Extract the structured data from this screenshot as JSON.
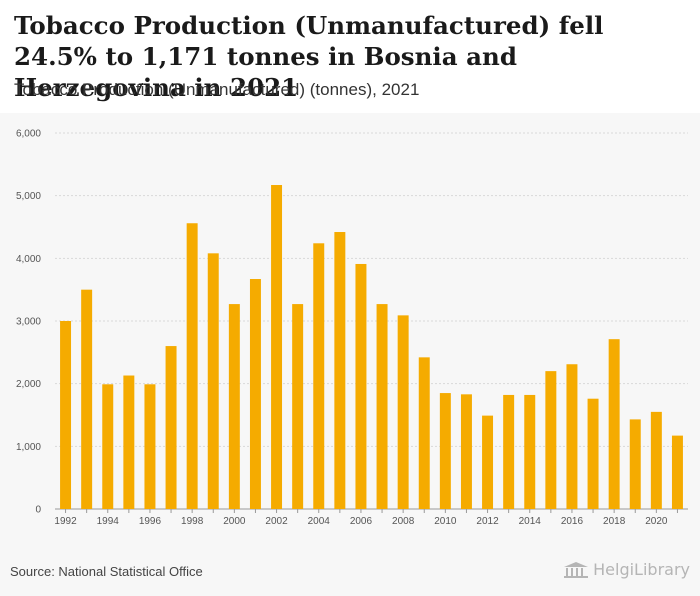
{
  "header": {
    "title": "Tobacco Production (Unmanufactured) fell 24.5% to 1,171 tonnes in Bosnia and Herzegovina in 2021",
    "subtitle": "Tobacco Production (Unmanufactured) (tonnes), 2021"
  },
  "footer": {
    "source": "Source: National Statistical Office",
    "brand": "HelgiLibrary"
  },
  "colors": {
    "bar": "#f5ab00",
    "grid": "#d9d9d9",
    "axis": "#999999",
    "background": "#f7f7f7"
  },
  "icons": {
    "brand": "library-building-icon"
  },
  "chart_data": {
    "type": "bar",
    "categories": [
      "1992",
      "1993",
      "1994",
      "1995",
      "1996",
      "1997",
      "1998",
      "1999",
      "2000",
      "2001",
      "2002",
      "2003",
      "2004",
      "2005",
      "2006",
      "2007",
      "2008",
      "2009",
      "2010",
      "2011",
      "2012",
      "2013",
      "2014",
      "2015",
      "2016",
      "2017",
      "2018",
      "2019",
      "2020",
      "2021"
    ],
    "values": [
      3000,
      3500,
      1990,
      2130,
      1990,
      2600,
      4560,
      4080,
      3270,
      3670,
      5170,
      3270,
      4240,
      4420,
      3910,
      3270,
      3090,
      2420,
      1850,
      1830,
      1490,
      1820,
      1820,
      2200,
      2310,
      1760,
      2710,
      1430,
      1550,
      1171
    ],
    "x_tick_labels": [
      "1992",
      "1994",
      "1996",
      "1998",
      "2000",
      "2002",
      "2004",
      "2006",
      "2008",
      "2010",
      "2012",
      "2014",
      "2016",
      "2018",
      "2020"
    ],
    "y_ticks": [
      "0",
      "1,000",
      "2,000",
      "3,000",
      "4,000",
      "5,000",
      "6,000"
    ],
    "ylim": [
      0,
      6000
    ],
    "grid": true,
    "legend": "none"
  }
}
